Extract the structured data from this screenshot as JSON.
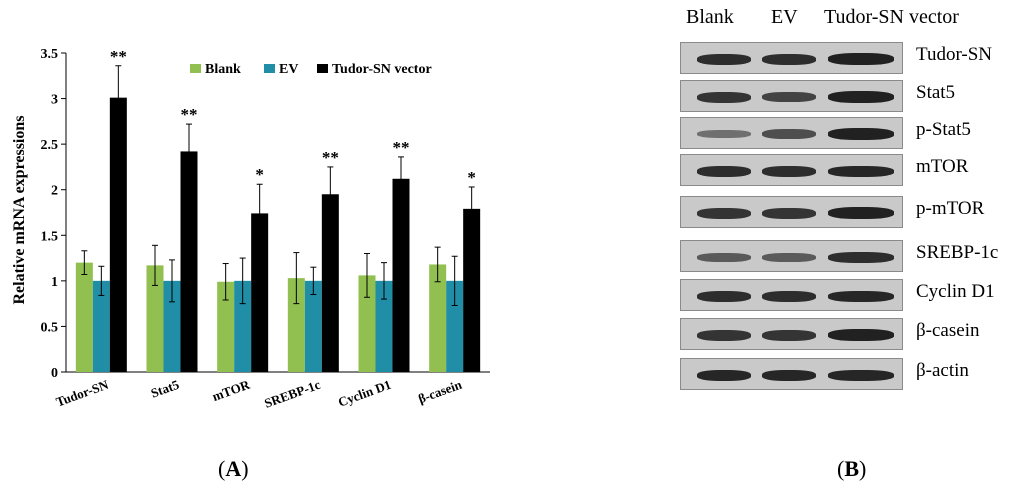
{
  "chart_data": {
    "type": "bar",
    "ylabel": "Relative mRNA expressions",
    "ylim": [
      0,
      3.5
    ],
    "yticks": [
      "0",
      "0.5",
      "1",
      "1.5",
      "2",
      "2.5",
      "3",
      "3.5"
    ],
    "categories": [
      "Tudor-SN",
      "Stat5",
      "mTOR",
      "SREBP-1c",
      "Cyclin D1",
      "β-casein"
    ],
    "legend_position": "top-right",
    "series": [
      {
        "name": "Blank",
        "color": "#92c050",
        "values": [
          1.2,
          1.17,
          0.99,
          1.03,
          1.06,
          1.18
        ],
        "errors": [
          0.13,
          0.22,
          0.2,
          0.28,
          0.24,
          0.19
        ]
      },
      {
        "name": "EV",
        "color": "#1f8ea6",
        "values": [
          1.0,
          1.0,
          1.0,
          1.0,
          1.0,
          1.0
        ],
        "errors": [
          0.16,
          0.23,
          0.25,
          0.15,
          0.2,
          0.27
        ]
      },
      {
        "name": "Tudor-SN vector",
        "color": "#000000",
        "values": [
          3.01,
          2.42,
          1.74,
          1.95,
          2.12,
          1.79
        ],
        "errors": [
          0.35,
          0.3,
          0.32,
          0.3,
          0.24,
          0.24
        ]
      }
    ],
    "significance": [
      "**",
      "**",
      "*",
      "**",
      "**",
      "*"
    ]
  },
  "panel_labels": {
    "a": "A",
    "b": "B"
  },
  "western_blot": {
    "lanes": [
      "Blank",
      "EV",
      "Tudor-SN vector"
    ],
    "rows": [
      {
        "label": "Tudor-SN",
        "intensity": [
          0.85,
          0.85,
          0.95
        ]
      },
      {
        "label": "Stat5",
        "intensity": [
          0.8,
          0.7,
          0.95
        ]
      },
      {
        "label": "p-Stat5",
        "intensity": [
          0.35,
          0.6,
          0.95
        ]
      },
      {
        "label": "mTOR",
        "intensity": [
          0.85,
          0.85,
          0.9
        ]
      },
      {
        "label": "p-mTOR",
        "intensity": [
          0.8,
          0.8,
          0.95
        ]
      },
      {
        "label": "SREBP-1c",
        "intensity": [
          0.5,
          0.5,
          0.85
        ]
      },
      {
        "label": "Cyclin D1",
        "intensity": [
          0.85,
          0.85,
          0.9
        ]
      },
      {
        "label": "β-casein",
        "intensity": [
          0.8,
          0.8,
          0.95
        ]
      },
      {
        "label": "β-actin",
        "intensity": [
          0.9,
          0.9,
          0.9
        ]
      }
    ]
  }
}
